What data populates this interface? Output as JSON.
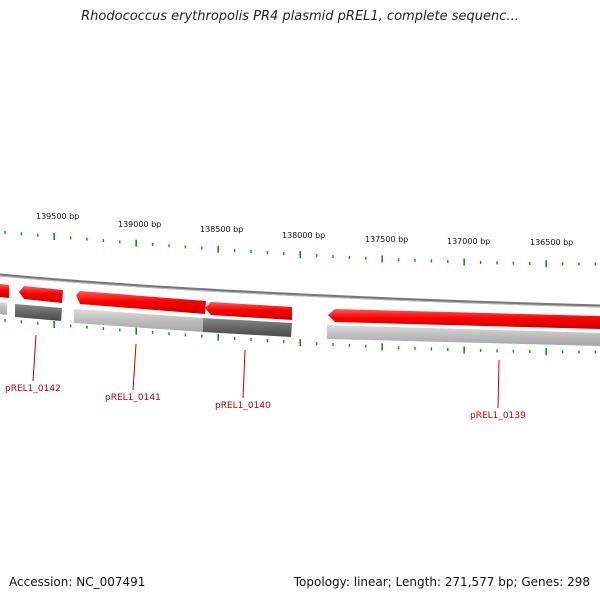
{
  "title": "Rhodococcus erythropolis PR4 plasmid pREL1, complete sequenc...",
  "footer": {
    "accession": "Accession: NC_007491",
    "summary": "Topology: linear; Length: 271,577 bp; Genes: 298"
  },
  "scale": {
    "tick_color": "#1a8a1a",
    "labels": [
      "139500 bp",
      "139000 bp",
      "138500 bp",
      "138000 bp",
      "137500 bp",
      "137000 bp",
      "136500 bp"
    ]
  },
  "genes": [
    {
      "label": "pREL1_0142"
    },
    {
      "label": "pREL1_0141"
    },
    {
      "label": "pREL1_0140"
    },
    {
      "label": "pREL1_0139"
    }
  ],
  "colors": {
    "gene_red": "#ff0000",
    "gene_dark": "#666666",
    "gene_light": "#bbbbbb",
    "backbone": "#888888",
    "label_red": "#c00000"
  }
}
